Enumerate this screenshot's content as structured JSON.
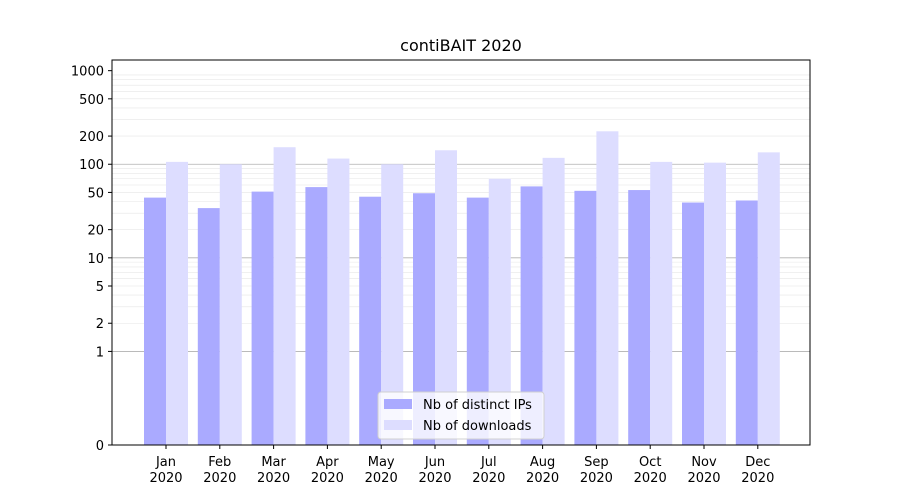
{
  "chart_data": {
    "type": "bar",
    "title": "contiBAIT 2020",
    "xlabel": "",
    "ylabel": "",
    "y_scale": "symlog",
    "ylim": [
      0,
      1300
    ],
    "y_ticks": [
      0,
      1,
      2,
      5,
      10,
      20,
      50,
      100,
      200,
      500,
      1000
    ],
    "categories": [
      "Jan",
      "Feb",
      "Mar",
      "Apr",
      "May",
      "Jun",
      "Jul",
      "Aug",
      "Sep",
      "Oct",
      "Nov",
      "Dec"
    ],
    "category_sublabel": "2020",
    "series": [
      {
        "name": "Nb of distinct IPs",
        "color": "#aaaaff",
        "values": [
          44,
          34,
          51,
          57,
          45,
          49,
          44,
          58,
          52,
          53,
          39,
          41
        ]
      },
      {
        "name": "Nb of downloads",
        "color": "#ddddff",
        "values": [
          106,
          100,
          152,
          115,
          100,
          141,
          70,
          117,
          225,
          106,
          104,
          134
        ]
      }
    ],
    "grid": true,
    "legend_position": "bottom-center"
  }
}
